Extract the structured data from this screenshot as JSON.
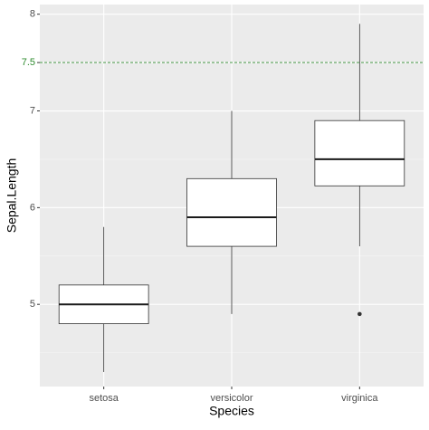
{
  "chart_data": {
    "type": "boxplot",
    "x_label": "Species",
    "y_label": "Sepal.Length",
    "categories": [
      "setosa",
      "versicolor",
      "virginica"
    ],
    "boxes": [
      {
        "min": 4.3,
        "q1": 4.8,
        "median": 5.0,
        "q3": 5.2,
        "max": 5.8,
        "outliers": []
      },
      {
        "min": 4.9,
        "q1": 5.6,
        "median": 5.9,
        "q3": 6.3,
        "max": 7.0,
        "outliers": []
      },
      {
        "min": 5.6,
        "q1": 6.225,
        "median": 6.5,
        "q3": 6.9,
        "max": 7.9,
        "outliers": [
          4.9
        ]
      }
    ],
    "ylim": [
      4.15,
      8.1
    ],
    "yticks": [
      5,
      6,
      7,
      7.5,
      8
    ],
    "minor_yticks": [
      4.5,
      5.5,
      6.5
    ],
    "grid": true,
    "hline": {
      "y": 7.5,
      "color": "#2e8b2e",
      "dashed": true
    }
  }
}
